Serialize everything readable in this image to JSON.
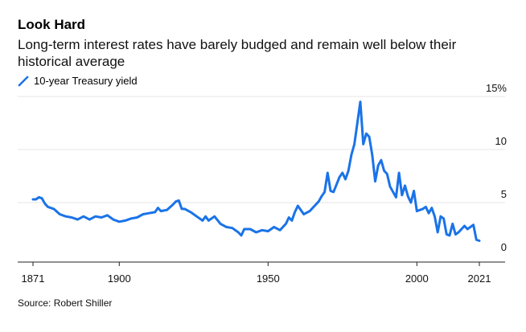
{
  "title": "Look Hard",
  "subtitle": "Long-term interest rates have barely budged and remain well below their historical average",
  "legend": {
    "label": "10-year Treasury yield",
    "color": "#1a73e8"
  },
  "source": "Source: Robert Shiller",
  "chart_data": {
    "type": "line",
    "title": "Look Hard",
    "xlabel": "",
    "ylabel": "",
    "xlim": [
      1871,
      2021
    ],
    "ylim": [
      0,
      15
    ],
    "x_ticks": [
      1871,
      1900,
      1950,
      2000,
      2021
    ],
    "y_ticks": [
      {
        "value": 15,
        "label": "15%"
      },
      {
        "value": 10,
        "label": "10"
      },
      {
        "value": 5,
        "label": "5"
      },
      {
        "value": 0,
        "label": "0"
      }
    ],
    "grid": true,
    "legend_position": "top-left",
    "series": [
      {
        "name": "10-year Treasury yield",
        "color": "#1a73e8",
        "x": [
          1871,
          1872,
          1873,
          1874,
          1875,
          1876,
          1878,
          1880,
          1882,
          1884,
          1886,
          1888,
          1890,
          1892,
          1894,
          1896,
          1898,
          1900,
          1902,
          1904,
          1906,
          1908,
          1910,
          1912,
          1913,
          1914,
          1916,
          1918,
          1919,
          1920,
          1921,
          1922,
          1924,
          1926,
          1928,
          1929,
          1930,
          1932,
          1934,
          1936,
          1938,
          1940,
          1941,
          1942,
          1944,
          1946,
          1948,
          1950,
          1952,
          1954,
          1956,
          1957,
          1958,
          1959,
          1960,
          1962,
          1964,
          1966,
          1967,
          1968,
          1969,
          1970,
          1971,
          1972,
          1973,
          1974,
          1975,
          1976,
          1977,
          1978,
          1979,
          1980,
          1981,
          1982,
          1983,
          1984,
          1985,
          1986,
          1987,
          1988,
          1989,
          1990,
          1991,
          1992,
          1993,
          1994,
          1995,
          1996,
          1997,
          1998,
          1999,
          2000,
          2001,
          2002,
          2003,
          2004,
          2005,
          2006,
          2007,
          2008,
          2009,
          2010,
          2011,
          2012,
          2013,
          2014,
          2015,
          2016,
          2017,
          2018,
          2019,
          2020,
          2021
        ],
        "values": [
          5.3,
          5.3,
          5.5,
          5.4,
          4.9,
          4.6,
          4.4,
          3.9,
          3.7,
          3.6,
          3.4,
          3.7,
          3.4,
          3.7,
          3.6,
          3.8,
          3.4,
          3.2,
          3.3,
          3.5,
          3.6,
          3.9,
          4.0,
          4.1,
          4.5,
          4.2,
          4.3,
          4.8,
          5.1,
          5.2,
          4.4,
          4.4,
          4.1,
          3.7,
          3.3,
          3.7,
          3.3,
          3.7,
          3.0,
          2.7,
          2.6,
          2.2,
          1.9,
          2.5,
          2.5,
          2.2,
          2.4,
          2.3,
          2.7,
          2.4,
          3.0,
          3.6,
          3.3,
          4.1,
          4.7,
          3.9,
          4.2,
          4.8,
          5.1,
          5.6,
          6.0,
          7.8,
          6.1,
          6.0,
          6.7,
          7.4,
          7.8,
          7.2,
          8.0,
          9.5,
          10.5,
          12.5,
          14.5,
          10.5,
          11.5,
          11.2,
          9.5,
          7.0,
          8.5,
          9.0,
          8.0,
          7.7,
          6.5,
          6.0,
          5.5,
          7.8,
          5.7,
          6.6,
          5.6,
          5.0,
          6.1,
          4.2,
          4.3,
          4.4,
          4.6,
          4.0,
          4.5,
          3.7,
          2.2,
          3.7,
          3.5,
          2.0,
          1.9,
          3.0,
          2.0,
          2.2,
          2.5,
          2.8,
          2.5,
          2.7,
          2.9,
          1.5,
          1.4
        ]
      }
    ]
  }
}
